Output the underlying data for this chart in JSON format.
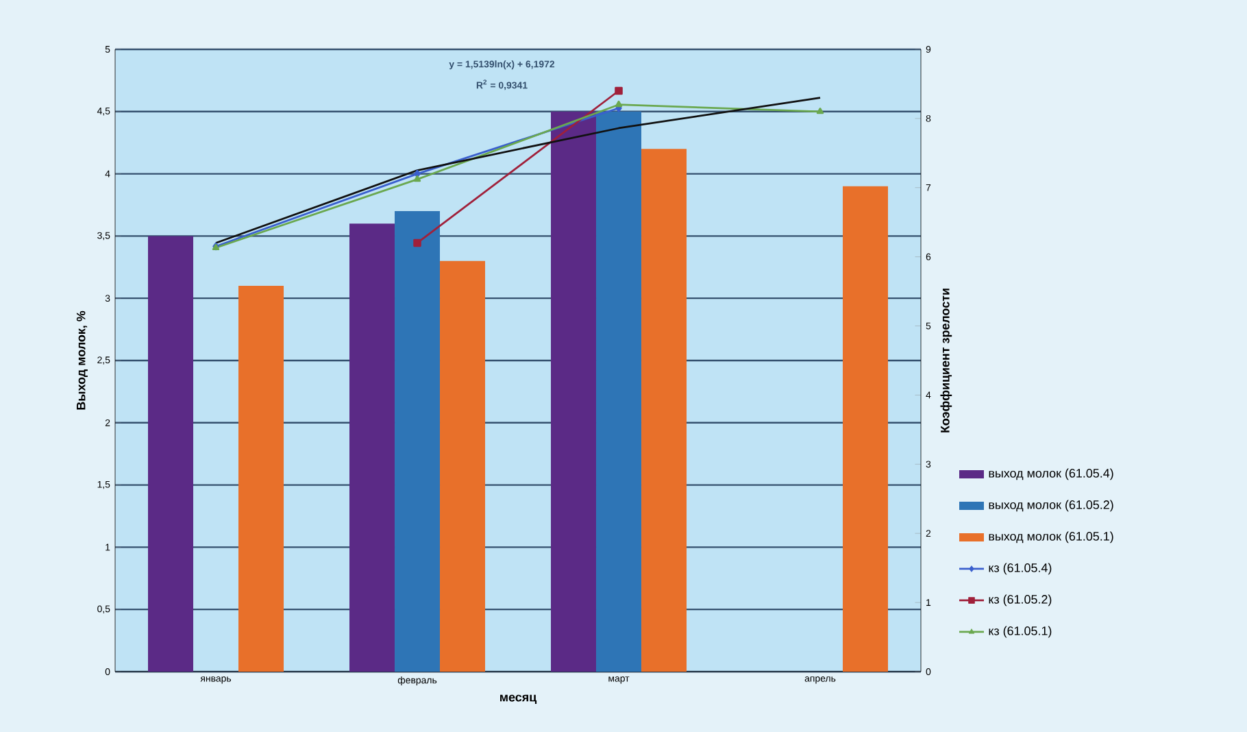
{
  "chart_data": {
    "type": "bar",
    "xlabel": "месяц",
    "ylabel": "Выход молок, %",
    "y2label": "Коэффициент зрелости",
    "categories": [
      "январь",
      "февраль",
      "март",
      "апрель"
    ],
    "ylim": [
      0,
      5
    ],
    "yticks": [
      0,
      {
        "value": 0.5,
        "label": "0,5"
      },
      1,
      {
        "value": 1.5,
        "label": "1,5"
      },
      2,
      {
        "value": 2.5,
        "label": "2,5"
      },
      3,
      {
        "value": 3.5,
        "label": "3,5"
      },
      4,
      {
        "value": 4.5,
        "label": "4,5"
      },
      5
    ],
    "y2lim": [
      0,
      9
    ],
    "y2ticks": [
      0,
      1,
      2,
      3,
      4,
      5,
      6,
      7,
      8,
      9
    ],
    "grid": "y",
    "legend": "right",
    "series": [
      {
        "name": "выход молок (61.05.4)",
        "color": "#5b2a86",
        "values": [
          3.5,
          3.6,
          4.5,
          null
        ]
      },
      {
        "name": "выход молок (61.05.2)",
        "color": "#2e75b6",
        "values": [
          null,
          3.7,
          4.5,
          null
        ]
      },
      {
        "name": "выход молок (61.05.1)",
        "color": "#e8702a",
        "values": [
          3.1,
          3.3,
          4.2,
          3.9
        ]
      },
      {
        "name": "кз (61.05.4)",
        "type": "line",
        "axis": "y2",
        "marker": "diamond",
        "color": "#3a5fcd",
        "values": [
          6.15,
          7.2,
          8.15,
          null
        ]
      },
      {
        "name": "кз (61.05.2)",
        "type": "line",
        "axis": "y2",
        "marker": "square",
        "color": "#a0203a",
        "values": [
          null,
          6.2,
          8.4,
          null
        ]
      },
      {
        "name": "кз (61.05.1)",
        "type": "line",
        "axis": "y2",
        "marker": "triangle",
        "color": "#6aa84f",
        "values": [
          6.13,
          7.12,
          8.2,
          8.1
        ]
      },
      {
        "type": "line",
        "axis": "y2",
        "marker": "none",
        "color": "#111111",
        "values": [
          6.2,
          7.25,
          7.86,
          8.3
        ]
      }
    ],
    "annotations": [
      "y = 1,5139ln(x) + 6,1972",
      "R$^{2}$ = 0,9341"
    ]
  }
}
